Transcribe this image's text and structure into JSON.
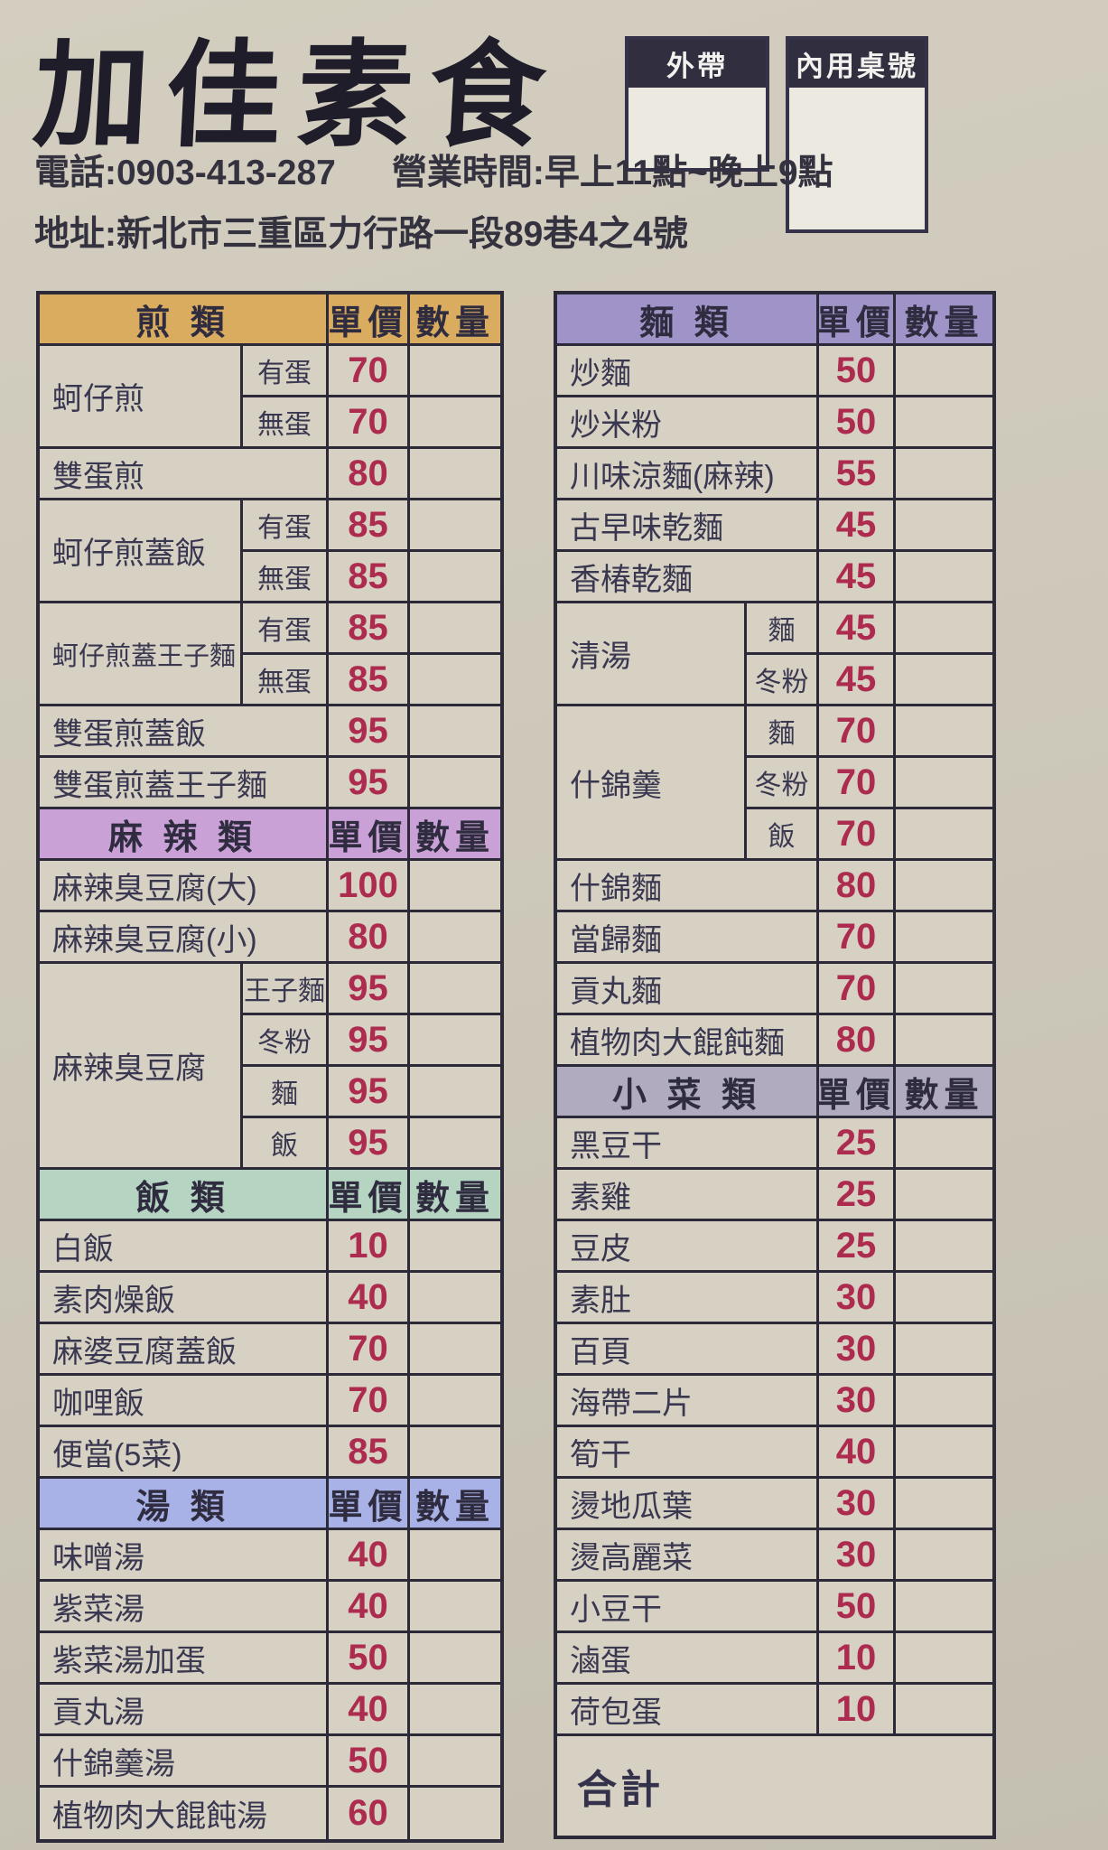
{
  "header": {
    "title": "加佳素食",
    "phone": "電話:0903-413-287",
    "hours": "營業時間:早上11點~晚上9點",
    "address": "地址:新北市三重區力行路一段89巷4之4號",
    "takeout_box_label": "外帶",
    "dinein_box_label": "內用桌號"
  },
  "columns": {
    "price": "單價",
    "qty": "數量"
  },
  "total_label": "合計",
  "left_sections": [
    {
      "name": "煎 類",
      "color": "#d9ac60",
      "items": [
        {
          "name": "蚵仔煎",
          "subs": [
            {
              "label": "有蛋",
              "price": "70"
            },
            {
              "label": "無蛋",
              "price": "70"
            }
          ]
        },
        {
          "name": "雙蛋煎",
          "price": "80"
        },
        {
          "name": "蚵仔煎蓋飯",
          "subs": [
            {
              "label": "有蛋",
              "price": "85"
            },
            {
              "label": "無蛋",
              "price": "85"
            }
          ]
        },
        {
          "name": "蚵仔煎蓋王子麵",
          "subs": [
            {
              "label": "有蛋",
              "price": "85"
            },
            {
              "label": "無蛋",
              "price": "85"
            }
          ]
        },
        {
          "name": "雙蛋煎蓋飯",
          "price": "95"
        },
        {
          "name": "雙蛋煎蓋王子麵",
          "price": "95"
        }
      ]
    },
    {
      "name": "麻 辣 類",
      "color": "#c9a1d6",
      "items": [
        {
          "name": "麻辣臭豆腐(大)",
          "price": "100"
        },
        {
          "name": "麻辣臭豆腐(小)",
          "price": "80"
        },
        {
          "name": "麻辣臭豆腐",
          "subs": [
            {
              "label": "王子麵",
              "price": "95"
            },
            {
              "label": "冬粉",
              "price": "95"
            },
            {
              "label": "麵",
              "price": "95"
            },
            {
              "label": "飯",
              "price": "95"
            }
          ]
        }
      ]
    },
    {
      "name": "飯 類",
      "color": "#b6d4c2",
      "items": [
        {
          "name": "白飯",
          "price": "10"
        },
        {
          "name": "素肉燥飯",
          "price": "40"
        },
        {
          "name": "麻婆豆腐蓋飯",
          "price": "70"
        },
        {
          "name": "咖哩飯",
          "price": "70"
        },
        {
          "name": "便當(5菜)",
          "price": "85"
        }
      ]
    },
    {
      "name": "湯 類",
      "color": "#a8b2e7",
      "items": [
        {
          "name": "味噌湯",
          "price": "40"
        },
        {
          "name": "紫菜湯",
          "price": "40"
        },
        {
          "name": "紫菜湯加蛋",
          "price": "50"
        },
        {
          "name": "貢丸湯",
          "price": "40"
        },
        {
          "name": "什錦羹湯",
          "price": "50"
        },
        {
          "name": "植物肉大餛飩湯",
          "price": "60"
        }
      ]
    }
  ],
  "right_sections": [
    {
      "name": "麵 類",
      "color": "#a093c8",
      "items": [
        {
          "name": "炒麵",
          "price": "50"
        },
        {
          "name": "炒米粉",
          "price": "50"
        },
        {
          "name": "川味涼麵(麻辣)",
          "price": "55"
        },
        {
          "name": "古早味乾麵",
          "price": "45"
        },
        {
          "name": "香椿乾麵",
          "price": "45"
        },
        {
          "name": "清湯",
          "subs": [
            {
              "label": "麵",
              "price": "45"
            },
            {
              "label": "冬粉",
              "price": "45"
            }
          ]
        },
        {
          "name": "什錦羹",
          "subs": [
            {
              "label": "麵",
              "price": "70"
            },
            {
              "label": "冬粉",
              "price": "70"
            },
            {
              "label": "飯",
              "price": "70"
            }
          ]
        },
        {
          "name": "什錦麵",
          "price": "80"
        },
        {
          "name": "當歸麵",
          "price": "70"
        },
        {
          "name": "貢丸麵",
          "price": "70"
        },
        {
          "name": "植物肉大餛飩麵",
          "price": "80"
        }
      ]
    },
    {
      "name": "小 菜 類",
      "color": "#b1abbf",
      "items": [
        {
          "name": "黑豆干",
          "price": "25"
        },
        {
          "name": "素雞",
          "price": "25"
        },
        {
          "name": "豆皮",
          "price": "25"
        },
        {
          "name": "素肚",
          "price": "30"
        },
        {
          "name": "百頁",
          "price": "30"
        },
        {
          "name": "海帶二片",
          "price": "30"
        },
        {
          "name": "筍干",
          "price": "40"
        },
        {
          "name": "燙地瓜葉",
          "price": "30"
        },
        {
          "name": "燙高麗菜",
          "price": "30"
        },
        {
          "name": "小豆干",
          "price": "50"
        },
        {
          "name": "滷蛋",
          "price": "10"
        },
        {
          "name": "荷包蛋",
          "price": "10"
        }
      ]
    }
  ]
}
